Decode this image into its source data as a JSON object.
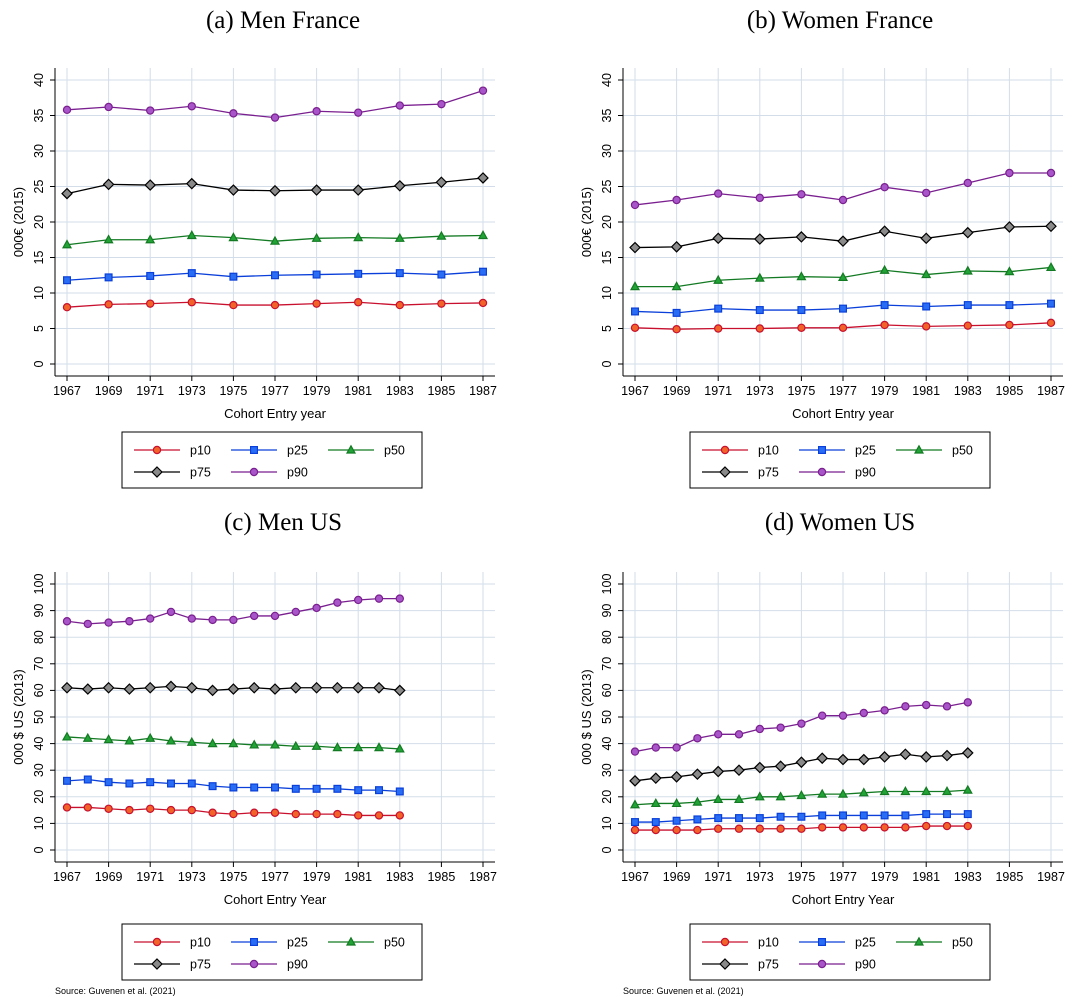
{
  "chart_data": [
    {
      "type": "line",
      "title": "(a) Men France",
      "xlabel": "Cohort Entry year",
      "ylabel": "000€ (2015)",
      "xlim": [
        1967,
        1987
      ],
      "ylim": [
        0,
        40
      ],
      "xticks": [
        1967,
        1969,
        1971,
        1973,
        1975,
        1977,
        1979,
        1981,
        1983,
        1985,
        1987
      ],
      "yticks": [
        0,
        5,
        10,
        15,
        20,
        25,
        30,
        35,
        40
      ],
      "grid": true,
      "legend_position": "bottom",
      "note": "",
      "x": [
        1967,
        1969,
        1971,
        1973,
        1975,
        1977,
        1979,
        1981,
        1983,
        1985,
        1987
      ],
      "series": [
        {
          "name": "p10",
          "values": [
            8.0,
            8.4,
            8.5,
            8.7,
            8.3,
            8.3,
            8.5,
            8.7,
            8.3,
            8.5,
            8.6
          ]
        },
        {
          "name": "p25",
          "values": [
            11.8,
            12.2,
            12.4,
            12.8,
            12.3,
            12.5,
            12.6,
            12.7,
            12.8,
            12.6,
            13.0
          ]
        },
        {
          "name": "p50",
          "values": [
            16.8,
            17.5,
            17.5,
            18.1,
            17.8,
            17.3,
            17.7,
            17.8,
            17.7,
            18.0,
            18.1
          ]
        },
        {
          "name": "p75",
          "values": [
            24.0,
            25.3,
            25.2,
            25.4,
            24.5,
            24.4,
            24.5,
            24.5,
            25.1,
            25.6,
            26.2
          ]
        },
        {
          "name": "p90",
          "values": [
            35.8,
            36.2,
            35.7,
            36.3,
            35.3,
            34.7,
            35.6,
            35.4,
            36.4,
            36.6,
            38.5
          ]
        }
      ]
    },
    {
      "type": "line",
      "title": "(b) Women France",
      "xlabel": "Cohort Entry year",
      "ylabel": "000€ (2015)",
      "xlim": [
        1967,
        1987
      ],
      "ylim": [
        0,
        40
      ],
      "xticks": [
        1967,
        1969,
        1971,
        1973,
        1975,
        1977,
        1979,
        1981,
        1983,
        1985,
        1987
      ],
      "yticks": [
        0,
        5,
        10,
        15,
        20,
        25,
        30,
        35,
        40
      ],
      "grid": true,
      "legend_position": "bottom",
      "note": "",
      "x": [
        1967,
        1969,
        1971,
        1973,
        1975,
        1977,
        1979,
        1981,
        1983,
        1985,
        1987
      ],
      "series": [
        {
          "name": "p10",
          "values": [
            5.1,
            4.9,
            5.0,
            5.0,
            5.1,
            5.1,
            5.5,
            5.3,
            5.4,
            5.5,
            5.8
          ]
        },
        {
          "name": "p25",
          "values": [
            7.4,
            7.2,
            7.8,
            7.6,
            7.6,
            7.8,
            8.3,
            8.1,
            8.3,
            8.3,
            8.5
          ]
        },
        {
          "name": "p50",
          "values": [
            10.9,
            10.9,
            11.8,
            12.1,
            12.3,
            12.2,
            13.2,
            12.6,
            13.1,
            13.0,
            13.6
          ]
        },
        {
          "name": "p75",
          "values": [
            16.4,
            16.5,
            17.7,
            17.6,
            17.9,
            17.3,
            18.7,
            17.7,
            18.5,
            19.3,
            19.4
          ]
        },
        {
          "name": "p90",
          "values": [
            22.4,
            23.1,
            24.0,
            23.4,
            23.9,
            23.1,
            24.9,
            24.1,
            25.5,
            26.9,
            26.9
          ]
        }
      ]
    },
    {
      "type": "line",
      "title": "(c) Men US",
      "xlabel": "Cohort Entry Year",
      "ylabel": "000 $ US (2013)",
      "xlim": [
        1967,
        1987
      ],
      "ylim": [
        0,
        100
      ],
      "xticks": [
        1967,
        1969,
        1971,
        1973,
        1975,
        1977,
        1979,
        1981,
        1983,
        1985,
        1987
      ],
      "yticks": [
        0,
        10,
        20,
        30,
        40,
        50,
        60,
        70,
        80,
        90,
        100
      ],
      "grid": true,
      "legend_position": "bottom",
      "note": "Source: Guvenen et al. (2021)",
      "x": [
        1967,
        1968,
        1969,
        1970,
        1971,
        1972,
        1973,
        1974,
        1975,
        1976,
        1977,
        1978,
        1979,
        1980,
        1981,
        1982,
        1983
      ],
      "series": [
        {
          "name": "p10",
          "values": [
            16,
            16,
            15.5,
            15,
            15.5,
            15,
            15,
            14,
            13.5,
            14,
            14,
            13.5,
            13.5,
            13.5,
            13,
            13,
            13
          ]
        },
        {
          "name": "p25",
          "values": [
            26,
            26.5,
            25.5,
            25,
            25.5,
            25,
            25,
            24,
            23.5,
            23.5,
            23.5,
            23,
            23,
            23,
            22.5,
            22.5,
            22
          ]
        },
        {
          "name": "p50",
          "values": [
            42.5,
            42,
            41.5,
            41,
            42,
            41,
            40.5,
            40,
            40,
            39.5,
            39.5,
            39,
            39,
            38.5,
            38.5,
            38.5,
            38
          ]
        },
        {
          "name": "p75",
          "values": [
            61,
            60.5,
            61,
            60.5,
            61,
            61.5,
            61,
            60,
            60.5,
            61,
            60.5,
            61,
            61,
            61,
            61,
            61,
            60
          ]
        },
        {
          "name": "p90",
          "values": [
            86,
            85,
            85.5,
            86,
            87,
            89.5,
            87,
            86.5,
            86.5,
            88,
            88,
            89.5,
            91,
            93,
            94,
            94.5,
            94.5
          ]
        }
      ]
    },
    {
      "type": "line",
      "title": "(d) Women US",
      "xlabel": "Cohort Entry Year",
      "ylabel": "000 $ US (2013)",
      "xlim": [
        1967,
        1987
      ],
      "ylim": [
        0,
        100
      ],
      "xticks": [
        1967,
        1969,
        1971,
        1973,
        1975,
        1977,
        1979,
        1981,
        1983,
        1985,
        1987
      ],
      "yticks": [
        0,
        10,
        20,
        30,
        40,
        50,
        60,
        70,
        80,
        90,
        100
      ],
      "grid": true,
      "legend_position": "bottom",
      "note": "Source: Guvenen et al. (2021)",
      "x": [
        1967,
        1968,
        1969,
        1970,
        1971,
        1972,
        1973,
        1974,
        1975,
        1976,
        1977,
        1978,
        1979,
        1980,
        1981,
        1982,
        1983
      ],
      "series": [
        {
          "name": "p10",
          "values": [
            7.5,
            7.5,
            7.5,
            7.5,
            8,
            8,
            8,
            8,
            8,
            8.5,
            8.5,
            8.5,
            8.5,
            8.5,
            9,
            9,
            9
          ]
        },
        {
          "name": "p25",
          "values": [
            10.5,
            10.5,
            11,
            11.5,
            12,
            12,
            12,
            12.5,
            12.5,
            13,
            13,
            13,
            13,
            13,
            13.5,
            13.5,
            13.5
          ]
        },
        {
          "name": "p50",
          "values": [
            17,
            17.5,
            17.5,
            18,
            19,
            19,
            20,
            20,
            20.5,
            21,
            21,
            21.5,
            22,
            22,
            22,
            22,
            22.5
          ]
        },
        {
          "name": "p75",
          "values": [
            26,
            27,
            27.5,
            28.5,
            29.5,
            30,
            31,
            31.5,
            33,
            34.5,
            34,
            34,
            35,
            36,
            35,
            35.5,
            36.5
          ]
        },
        {
          "name": "p90",
          "values": [
            37,
            38.5,
            38.5,
            42,
            43.5,
            43.5,
            45.5,
            46,
            47.5,
            50.5,
            50.5,
            51.5,
            52.5,
            54,
            54.5,
            54,
            55.5
          ]
        }
      ]
    }
  ],
  "series_styles": {
    "p10": {
      "color": "#c8102e",
      "fill": "#f2632a",
      "marker": "circle-marker"
    },
    "p25": {
      "color": "#0a3fd9",
      "fill": "#2a6df5",
      "marker": "square-marker"
    },
    "p50": {
      "color": "#137a23",
      "fill": "#22a336",
      "marker": "triangle-marker"
    },
    "p75": {
      "color": "#000000",
      "fill": "#8a8a8a",
      "marker": "diamond-marker"
    },
    "p90": {
      "color": "#7a1f8f",
      "fill": "#a855c9",
      "marker": "circle-marker"
    }
  }
}
